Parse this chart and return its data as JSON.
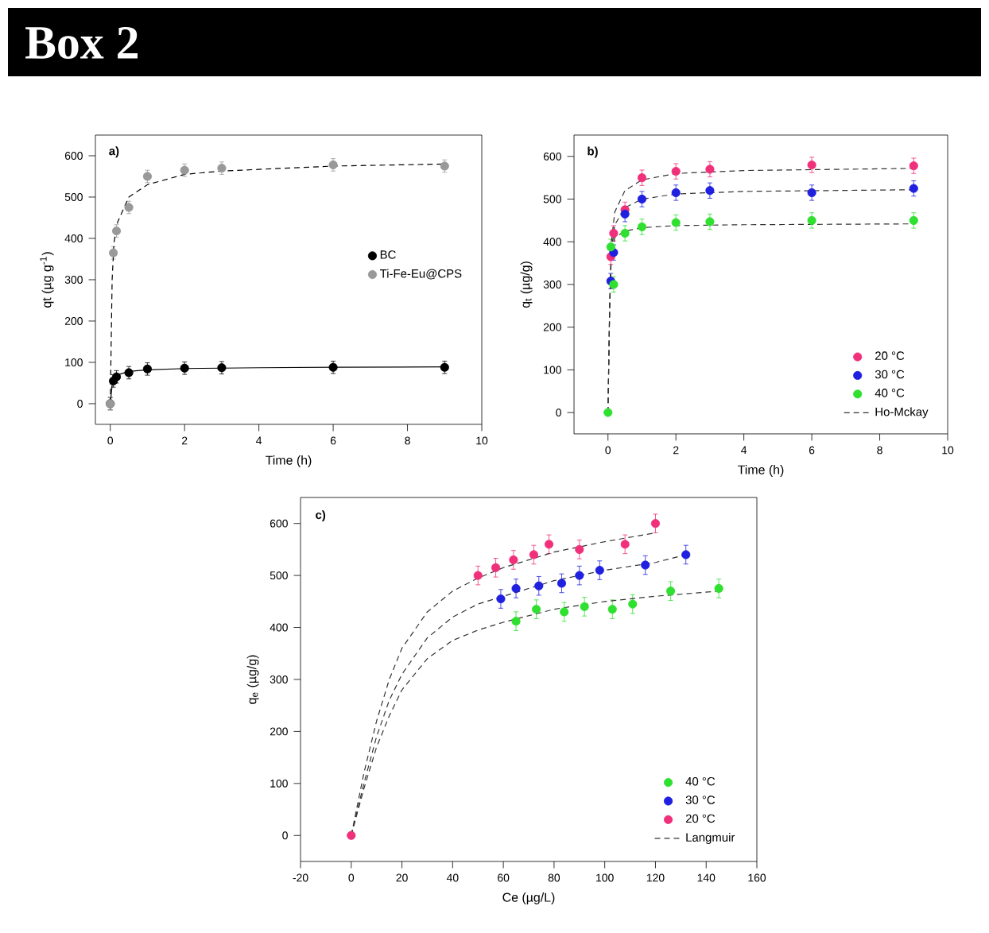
{
  "chart_data": [
    {
      "type": "scatter",
      "title": "Box 2",
      "annotations": [
        "a)"
      ],
      "xlabel": "Time (h)",
      "ylabel": "qt (µg g$^{-1}$)",
      "xlim": [
        -0.4,
        10
      ],
      "ylim": [
        -50,
        650
      ],
      "xticks": [
        0,
        2,
        4,
        6,
        8,
        10
      ],
      "yticks": [
        0,
        100,
        200,
        300,
        400,
        500,
        600
      ],
      "legend": "right",
      "series": [
        {
          "name": "BC",
          "color": "#000000",
          "x": [
            0,
            0.083,
            0.167,
            0.5,
            1,
            2,
            3,
            6,
            9
          ],
          "values": [
            0,
            55,
            65,
            75,
            84,
            86,
            87,
            88,
            88
          ],
          "errors": [
            15,
            15,
            15,
            15,
            15,
            15,
            15,
            15,
            15
          ]
        },
        {
          "name": "Ti-Fe-Eu@CPS",
          "color": "#999999",
          "x": [
            0,
            0.083,
            0.167,
            0.5,
            1,
            2,
            3,
            6,
            9
          ],
          "values": [
            0,
            365,
            418,
            475,
            550,
            565,
            570,
            578,
            575
          ],
          "errors": [
            15,
            15,
            15,
            15,
            15,
            15,
            15,
            15,
            15
          ]
        },
        {
          "color": "#000000",
          "type": "line",
          "marker": "none",
          "line_style": "solid",
          "x": [
            0,
            0.05,
            0.1,
            0.2,
            0.5,
            1,
            2,
            4,
            6,
            9
          ],
          "values": [
            0,
            45,
            62,
            70,
            78,
            82,
            85,
            87,
            88,
            89
          ]
        },
        {
          "color": "#000000",
          "type": "line",
          "marker": "none",
          "line_style": "dashed",
          "x": [
            0,
            0.05,
            0.1,
            0.2,
            0.5,
            1,
            2,
            3,
            6,
            9
          ],
          "values": [
            0,
            300,
            390,
            440,
            500,
            530,
            555,
            563,
            575,
            580
          ]
        }
      ]
    },
    {
      "type": "scatter",
      "annotations": [
        "b)"
      ],
      "xlabel": "Time (h)",
      "ylabel": "q$_{t}$ (µg/g)",
      "xlim": [
        -1,
        10
      ],
      "ylim": [
        -50,
        650
      ],
      "xticks": [
        0,
        2,
        4,
        6,
        8,
        10
      ],
      "yticks": [
        0,
        100,
        200,
        300,
        400,
        500,
        600
      ],
      "legend": "bottom right",
      "series": [
        {
          "name": "20 °C",
          "color": "#f0307a",
          "x": [
            0.083,
            0.167,
            0.5,
            1,
            2,
            3,
            6,
            9
          ],
          "values": [
            365,
            420,
            475,
            550,
            565,
            570,
            580,
            578
          ],
          "errors": [
            18,
            18,
            18,
            18,
            18,
            18,
            18,
            18
          ]
        },
        {
          "name": "30 °C",
          "color": "#2020e0",
          "x": [
            0.083,
            0.167,
            0.5,
            1,
            2,
            3,
            6,
            9
          ],
          "values": [
            308,
            375,
            465,
            500,
            515,
            520,
            515,
            525
          ],
          "errors": [
            18,
            18,
            18,
            18,
            18,
            18,
            18,
            18
          ]
        },
        {
          "name": "40 °C",
          "color": "#30e030",
          "x": [
            0,
            0.083,
            0.167,
            0.5,
            1,
            2,
            3,
            6,
            9
          ],
          "values": [
            0,
            388,
            300,
            420,
            435,
            445,
            447,
            450,
            450
          ],
          "errors": [
            null,
            18,
            18,
            18,
            18,
            18,
            18,
            18,
            18
          ]
        },
        {
          "name": "Ho-Mckay",
          "color": "#333333",
          "type": "line",
          "marker": "none",
          "line_style": "dashed",
          "x": [
            0,
            0.05,
            0.1,
            0.2,
            0.5,
            1,
            2,
            4,
            9
          ],
          "values": [
            0,
            250,
            400,
            470,
            520,
            545,
            560,
            567,
            572
          ]
        },
        {
          "color": "#333333",
          "type": "line",
          "marker": "none",
          "line_style": "dashed",
          "x": [
            0,
            0.05,
            0.1,
            0.2,
            0.5,
            1,
            2,
            4,
            9
          ],
          "values": [
            0,
            250,
            380,
            440,
            480,
            500,
            512,
            518,
            522
          ]
        },
        {
          "color": "#333333",
          "type": "line",
          "marker": "none",
          "line_style": "dashed",
          "x": [
            0,
            0.05,
            0.1,
            0.2,
            0.5,
            1,
            2,
            4,
            9
          ],
          "values": [
            0,
            250,
            370,
            410,
            425,
            433,
            438,
            440,
            442
          ]
        }
      ]
    },
    {
      "type": "scatter",
      "annotations": [
        "c)"
      ],
      "xlabel": "Ce (µg/L)",
      "ylabel": "q$_{e}$ (µg/g)",
      "xlim": [
        -20,
        160
      ],
      "ylim": [
        -50,
        650
      ],
      "xticks": [
        -20,
        0,
        20,
        40,
        60,
        80,
        100,
        120,
        140,
        160
      ],
      "yticks": [
        0,
        100,
        200,
        300,
        400,
        500,
        600
      ],
      "legend": "bottom right",
      "series": [
        {
          "name": "40 °C",
          "color": "#30e030",
          "x": [
            65,
            73,
            84,
            92,
            103,
            111,
            126,
            145
          ],
          "values": [
            412,
            435,
            430,
            440,
            435,
            445,
            470,
            475
          ],
          "errors": [
            18,
            18,
            18,
            18,
            18,
            18,
            18,
            18
          ]
        },
        {
          "name": "30 °C",
          "color": "#2020e0",
          "x": [
            59,
            65,
            74,
            83,
            90,
            98,
            116,
            132
          ],
          "values": [
            455,
            475,
            480,
            485,
            500,
            510,
            520,
            540
          ],
          "errors": [
            18,
            18,
            18,
            18,
            18,
            18,
            18,
            18
          ]
        },
        {
          "name": "20 °C",
          "color": "#f0307a",
          "x": [
            0,
            50,
            57,
            64,
            72,
            78,
            90,
            108,
            120
          ],
          "values": [
            0,
            500,
            515,
            530,
            540,
            560,
            550,
            560,
            600
          ],
          "errors": [
            null,
            18,
            18,
            18,
            18,
            18,
            18,
            18,
            18
          ]
        },
        {
          "name": "Langmuir",
          "color": "#333333",
          "type": "line",
          "marker": "none",
          "line_style": "dashed",
          "x": [
            0,
            5,
            10,
            15,
            20,
            30,
            40,
            50,
            60,
            80,
            100,
            120
          ],
          "values": [
            0,
            120,
            220,
            300,
            360,
            430,
            470,
            495,
            515,
            545,
            565,
            582
          ]
        },
        {
          "color": "#333333",
          "type": "line",
          "marker": "none",
          "line_style": "dashed",
          "x": [
            0,
            5,
            10,
            15,
            20,
            30,
            40,
            50,
            60,
            80,
            100,
            120,
            132
          ],
          "values": [
            0,
            100,
            190,
            260,
            310,
            380,
            420,
            445,
            460,
            490,
            510,
            525,
            540
          ]
        },
        {
          "color": "#333333",
          "type": "line",
          "marker": "none",
          "line_style": "dashed",
          "x": [
            0,
            5,
            10,
            15,
            20,
            30,
            40,
            50,
            60,
            80,
            100,
            120,
            145
          ],
          "values": [
            0,
            90,
            170,
            230,
            280,
            340,
            375,
            395,
            410,
            435,
            450,
            460,
            470
          ]
        }
      ]
    }
  ]
}
